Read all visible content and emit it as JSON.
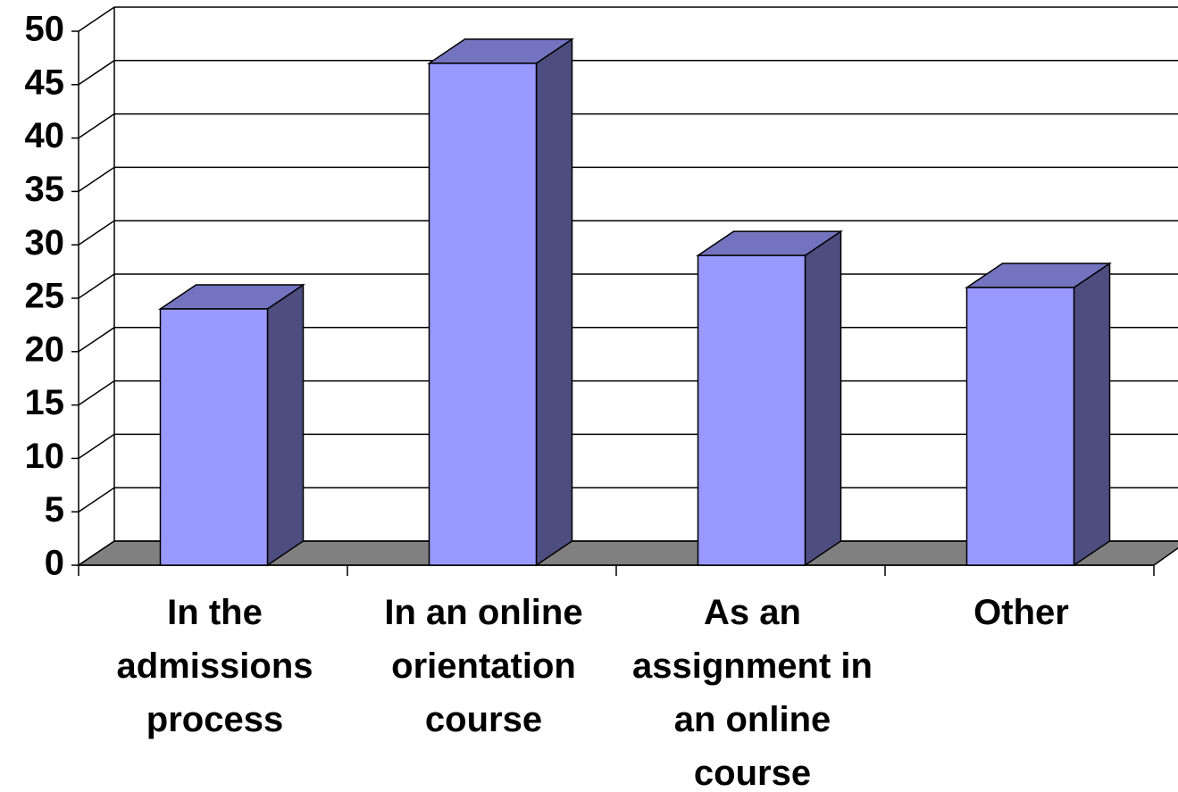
{
  "chart_data": {
    "type": "bar3d",
    "categories": [
      "In the admissions process",
      "In an online orientation course",
      "As an assignment in an online course",
      "Other"
    ],
    "values": [
      24,
      47,
      29,
      26
    ],
    "color": "#9999ff",
    "ylim": [
      0,
      50
    ],
    "yticks": [
      0,
      5,
      10,
      15,
      20,
      25,
      30,
      35,
      40,
      45,
      50
    ],
    "grid": true
  }
}
